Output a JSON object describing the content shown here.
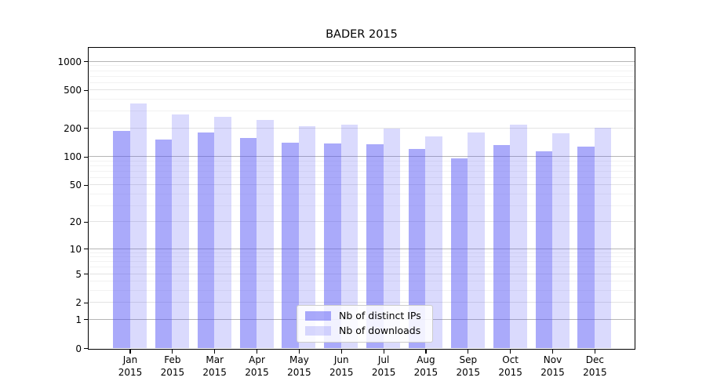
{
  "chart_data": {
    "type": "bar",
    "title": "BADER 2015",
    "categories": [
      "Jan 2015",
      "Feb 2015",
      "Mar 2015",
      "Apr 2015",
      "May 2015",
      "Jun 2015",
      "Jul 2015",
      "Aug 2015",
      "Sep 2015",
      "Oct 2015",
      "Nov 2015",
      "Dec 2015"
    ],
    "series": [
      {
        "name": "Nb of distinct IPs",
        "color": "#5555f5",
        "alpha": 0.5,
        "values": [
          185,
          152,
          180,
          158,
          140,
          137,
          135,
          120,
          95,
          133,
          113,
          128
        ]
      },
      {
        "name": "Nb of downloads",
        "color": "#5555f5",
        "alpha": 0.22,
        "values": [
          360,
          280,
          264,
          244,
          207,
          217,
          197,
          163,
          178,
          219,
          176,
          200
        ]
      }
    ],
    "xlabel": "",
    "ylabel": "",
    "yscale": "log1p",
    "yticks": [
      0,
      1,
      2,
      5,
      10,
      20,
      50,
      100,
      200,
      500,
      1000
    ],
    "minor_gridlines": [
      3,
      4,
      6,
      7,
      8,
      9,
      30,
      40,
      60,
      70,
      80,
      90,
      300,
      400,
      600,
      700,
      800,
      900
    ],
    "ylim": [
      0,
      1387
    ],
    "grid": true,
    "legend_position": "lower center"
  }
}
